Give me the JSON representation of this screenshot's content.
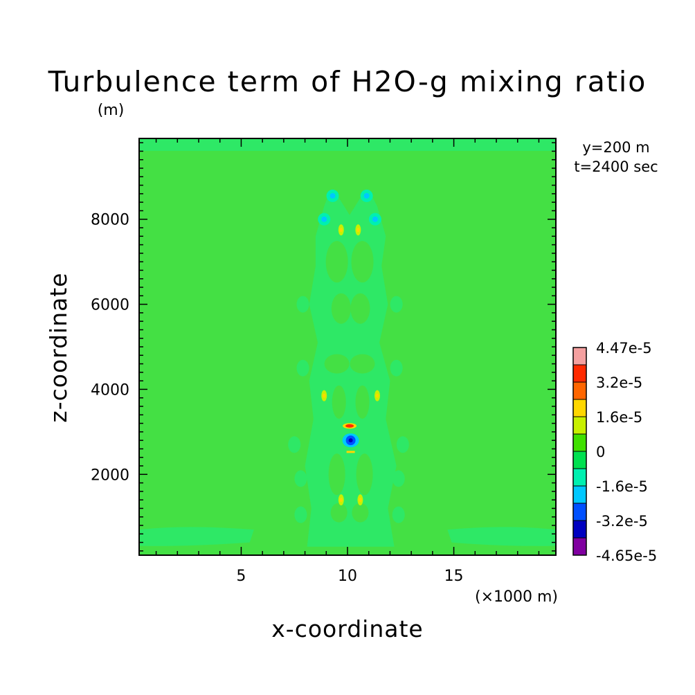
{
  "chart_data": {
    "type": "heatmap",
    "title": "Turbulence term of H2O-g mixing ratio",
    "xlabel": "x-coordinate",
    "ylabel": "z-coordinate",
    "x_unit": "(×1000 m)",
    "y_unit": "(m)",
    "annotations": [
      "y=200 m",
      "t=2400 sec"
    ],
    "xlim": [
      0.2,
      19.8
    ],
    "ylim": [
      100,
      9900
    ],
    "x_ticks": [
      5,
      10,
      15
    ],
    "y_ticks": [
      2000,
      4000,
      6000,
      8000
    ],
    "colorbar": {
      "labels": [
        "4.47e-5",
        "3.2e-5",
        "1.6e-5",
        "0",
        "-1.6e-5",
        "-3.2e-5",
        "-4.65e-5"
      ],
      "levels": [
        4.47e-05,
        3.2e-05,
        1.6e-05,
        0,
        -1.6e-05,
        -3.2e-05,
        -4.65e-05
      ],
      "colors": [
        "#f4a0a0",
        "#ff2a00",
        "#ff6600",
        "#ffd700",
        "#c8f000",
        "#40e000",
        "#00e050",
        "#00f0b0",
        "#00c8ff",
        "#0050ff",
        "#0000c0",
        "#8000a0"
      ]
    },
    "background_color": "#44e044",
    "features": [
      {
        "name": "negative-core",
        "x": 10.15,
        "z": 2800,
        "value": -4.65e-05
      },
      {
        "name": "positive-cap",
        "x": 10.1,
        "z": 3140,
        "value": 3.2e-05
      },
      {
        "name": "negative-upper-left",
        "x": 8.9,
        "z": 8000,
        "value": -1.6e-05
      },
      {
        "name": "negative-upper-right",
        "x": 11.3,
        "z": 8000,
        "value": -1.6e-05
      },
      {
        "name": "negative-top-left",
        "x": 9.3,
        "z": 8550,
        "value": -1.6e-05
      },
      {
        "name": "negative-top-right",
        "x": 10.9,
        "z": 8550,
        "value": -1.6e-05
      },
      {
        "name": "positive-low-left",
        "x": 9.7,
        "z": 1400,
        "value": 1.6e-05
      },
      {
        "name": "positive-low-right",
        "x": 10.6,
        "z": 1400,
        "value": 1.6e-05
      },
      {
        "name": "positive-mid-left",
        "x": 8.9,
        "z": 3850,
        "value": 1.6e-05
      },
      {
        "name": "positive-mid-right",
        "x": 11.4,
        "z": 3850,
        "value": 1.6e-05
      },
      {
        "name": "positive-upper-left",
        "x": 9.7,
        "z": 7750,
        "value": 1.6e-05
      },
      {
        "name": "positive-upper-right",
        "x": 10.5,
        "z": 7750,
        "value": 1.6e-05
      }
    ]
  }
}
